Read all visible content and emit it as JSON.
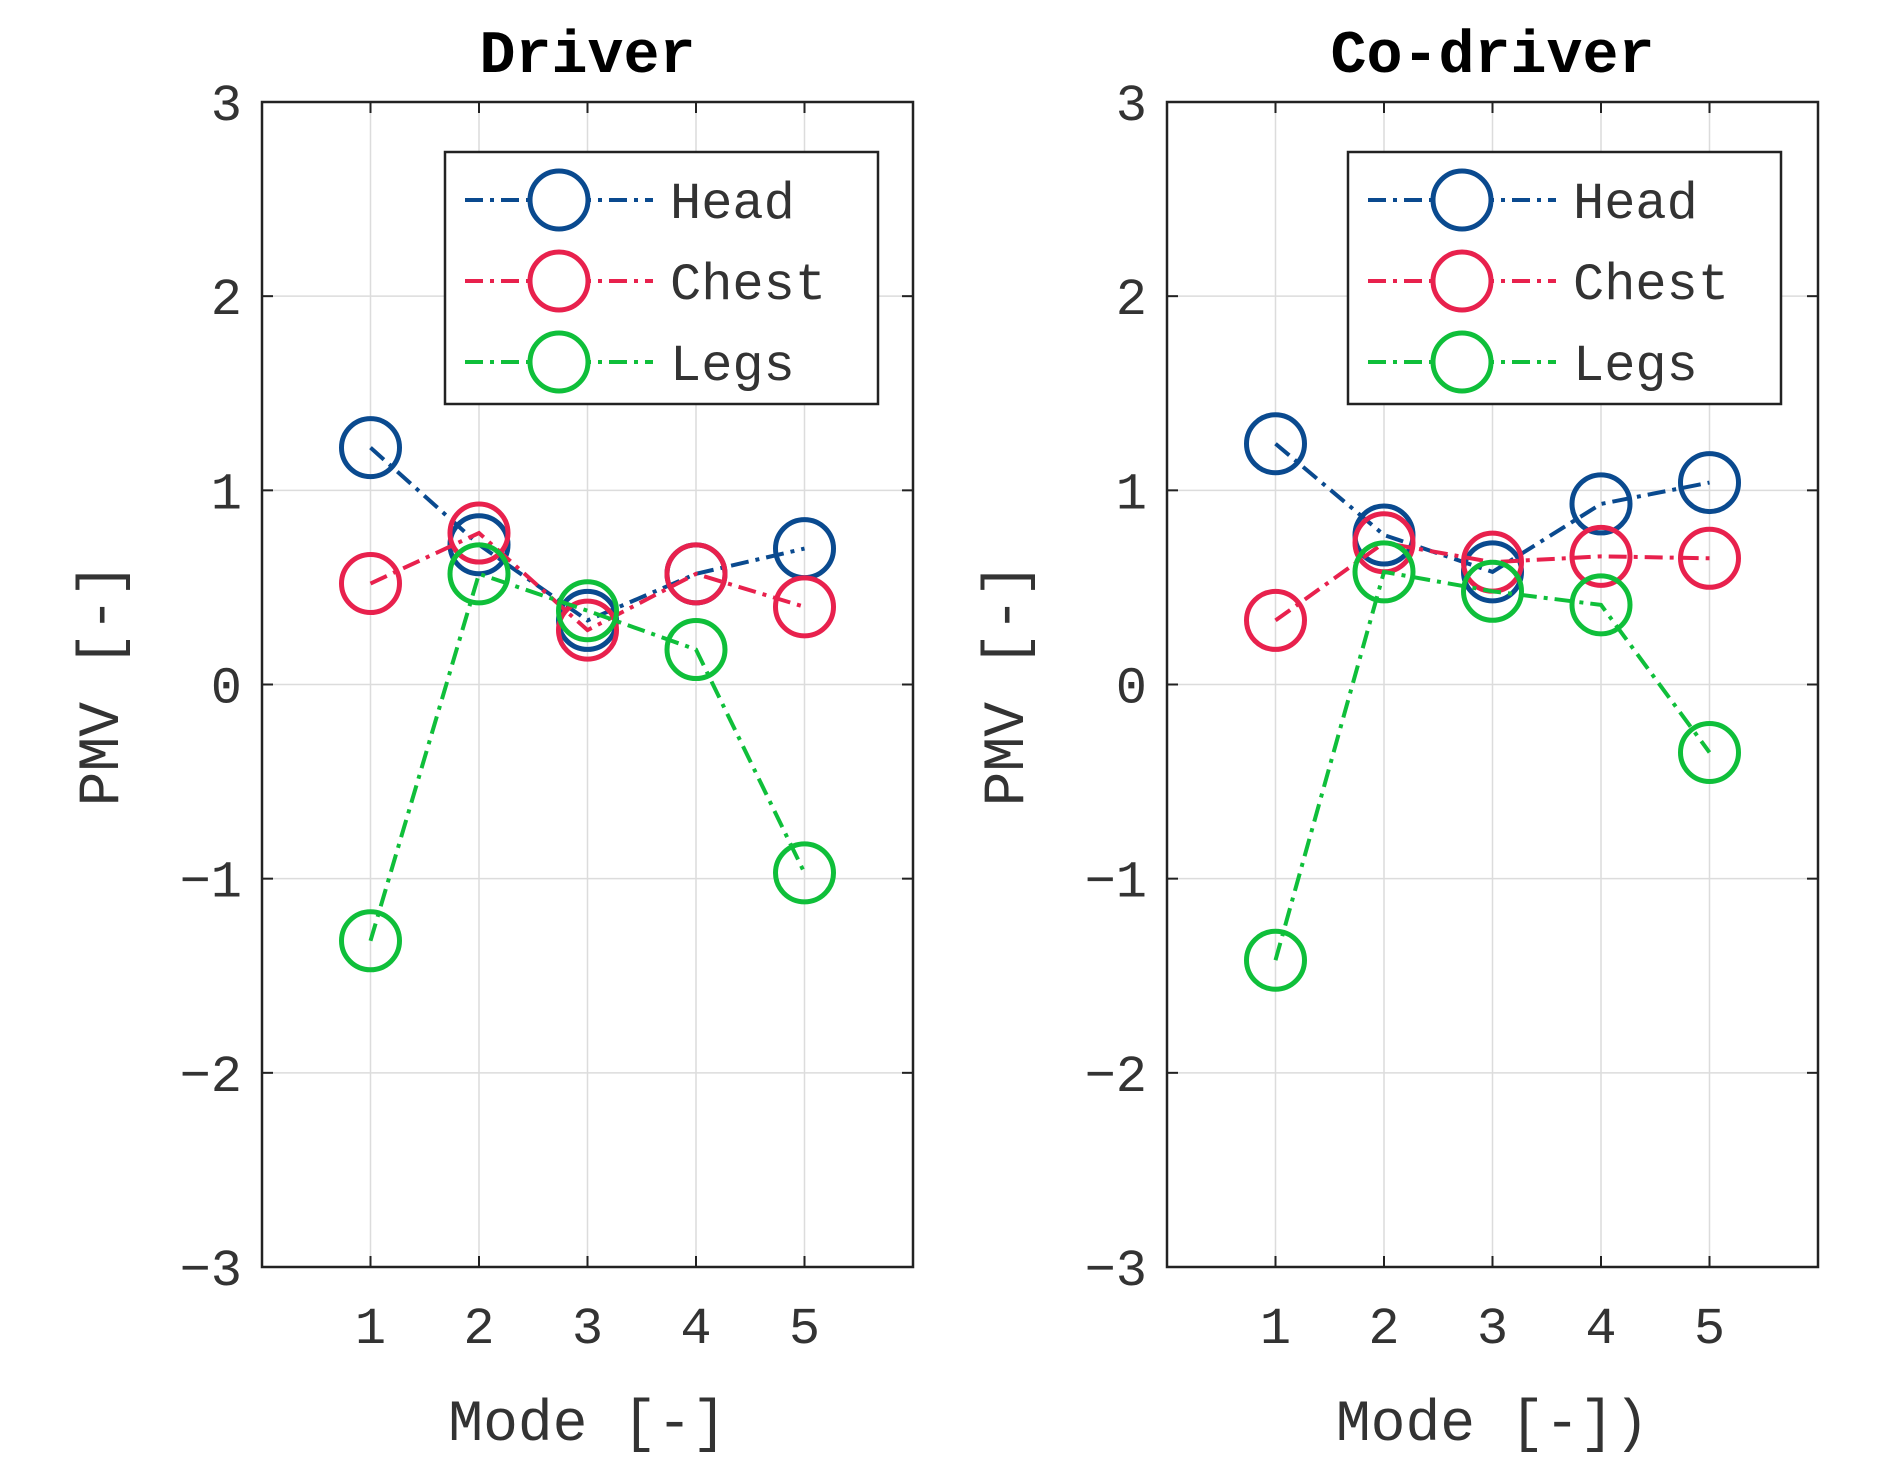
{
  "chart_data": [
    {
      "type": "line",
      "title": "Driver",
      "xlabel": "Mode [-]",
      "ylabel": "PMV [-]",
      "x": [
        1,
        2,
        3,
        4,
        5
      ],
      "xlim": [
        0,
        6
      ],
      "ylim": [
        -3,
        3
      ],
      "xticks": [
        "1",
        "2",
        "3",
        "4",
        "5"
      ],
      "yticks": [
        "−3",
        "−2",
        "−1",
        "0",
        "1",
        "2",
        "3"
      ],
      "grid": true,
      "legend_position": "top-right",
      "series": [
        {
          "name": "Head",
          "color": "#0a4a8f",
          "values": [
            1.22,
            0.72,
            0.33,
            0.57,
            0.7
          ]
        },
        {
          "name": "Chest",
          "color": "#e8214d",
          "values": [
            0.52,
            0.78,
            0.28,
            0.57,
            0.4
          ]
        },
        {
          "name": "Legs",
          "color": "#0fbf3a",
          "values": [
            -1.32,
            0.57,
            0.38,
            0.18,
            -0.97
          ]
        }
      ]
    },
    {
      "type": "line",
      "title": "Co-driver",
      "xlabel": "Mode [-])",
      "ylabel": "PMV [-]",
      "x": [
        1,
        2,
        3,
        4,
        5
      ],
      "xlim": [
        0,
        6
      ],
      "ylim": [
        -3,
        3
      ],
      "xticks": [
        "1",
        "2",
        "3",
        "4",
        "5"
      ],
      "yticks": [
        "−3",
        "−2",
        "−1",
        "0",
        "1",
        "2",
        "3"
      ],
      "grid": true,
      "legend_position": "top-right",
      "series": [
        {
          "name": "Head",
          "color": "#0a4a8f",
          "values": [
            1.24,
            0.77,
            0.58,
            0.93,
            1.04
          ]
        },
        {
          "name": "Chest",
          "color": "#e8214d",
          "values": [
            0.33,
            0.73,
            0.63,
            0.66,
            0.65
          ]
        },
        {
          "name": "Legs",
          "color": "#0fbf3a",
          "values": [
            -1.42,
            0.58,
            0.48,
            0.41,
            -0.35
          ]
        }
      ]
    }
  ]
}
